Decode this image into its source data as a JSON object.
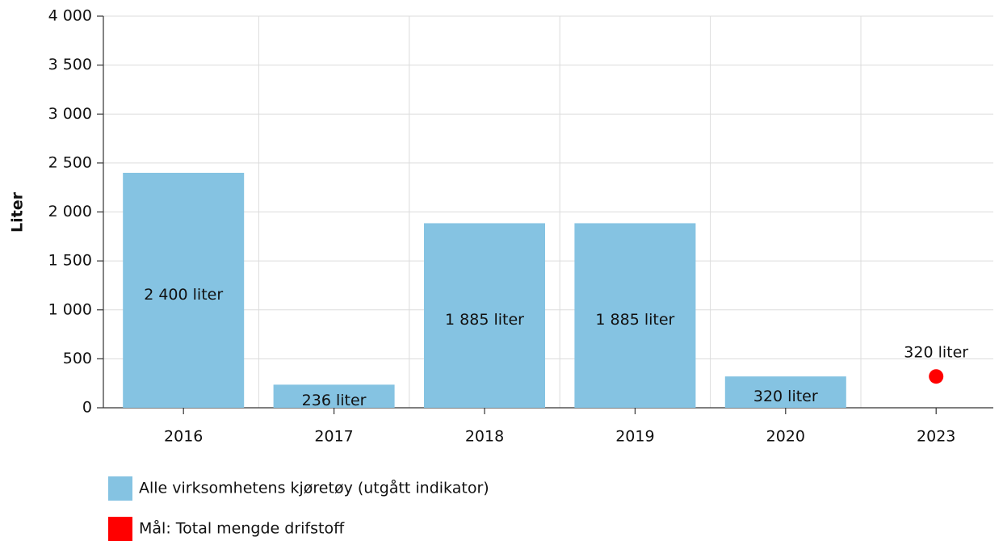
{
  "chart_data": {
    "type": "bar",
    "y_label": "Liter",
    "categories": [
      "2016",
      "2017",
      "2018",
      "2019",
      "2020",
      "2023"
    ],
    "series": [
      {
        "name": "Alle virksomhetens kjøretøy (utgått indikator)",
        "type": "bar",
        "color": "#85c3e2",
        "values": [
          2400,
          236,
          1885,
          1885,
          320,
          null
        ],
        "value_labels": [
          "2 400 liter",
          "236 liter",
          "1 885 liter",
          "1 885 liter",
          "320 liter",
          null
        ]
      },
      {
        "name": "Mål: Total mengde drifstoff",
        "type": "scatter",
        "color": "#ff0000",
        "values": [
          null,
          null,
          null,
          null,
          null,
          320
        ],
        "value_labels": [
          null,
          null,
          null,
          null,
          null,
          "320 liter"
        ]
      }
    ],
    "ylim": [
      0,
      4000
    ],
    "yticks": [
      0,
      500,
      {
        "value": 1000,
        "label": "1 000"
      },
      {
        "value": 1500,
        "label": "1 500"
      },
      {
        "value": 2000,
        "label": "2 000"
      },
      {
        "value": 2500,
        "label": "2 500"
      },
      {
        "value": 3000,
        "label": "3 000"
      },
      {
        "value": 3500,
        "label": "3 500"
      },
      {
        "value": 4000,
        "label": "4 000"
      }
    ],
    "grid": true
  }
}
